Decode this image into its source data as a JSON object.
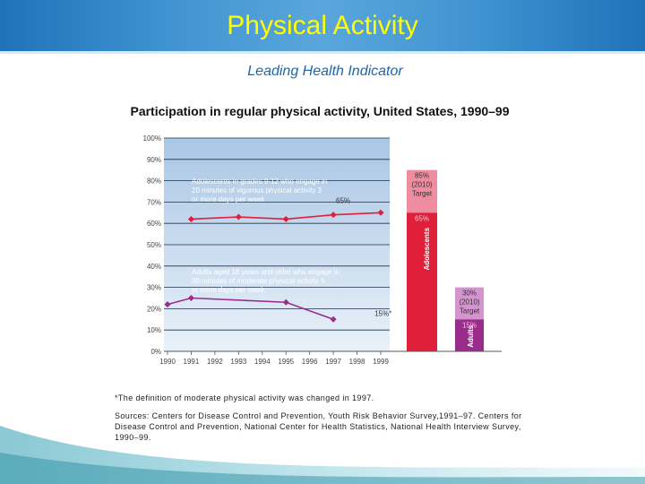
{
  "header": {
    "title": "Physical Activity",
    "subtitle": "Leading Health Indicator"
  },
  "colors": {
    "adolescents": "#e0203a",
    "adults": "#9a2d8c",
    "target_adolescents": "#ee8ca0",
    "target_adults": "#d494cd"
  },
  "chart_data": {
    "type": "line",
    "title": "Participation in regular physical activity, United States, 1990–99",
    "x": [
      1990,
      1991,
      1992,
      1993,
      1994,
      1995,
      1996,
      1997,
      1998,
      1999
    ],
    "x_tick_labels": [
      "1990",
      "1991",
      "1992",
      "1993",
      "1994",
      "1995",
      "1996",
      "1997",
      "1998",
      "1999"
    ],
    "y_tick_labels": [
      "0%",
      "10%",
      "20%",
      "30%",
      "40%",
      "50%",
      "60%",
      "70%",
      "80%",
      "90%",
      "100%"
    ],
    "ylim": [
      0,
      100
    ],
    "grid": true,
    "series": [
      {
        "key": "adolescents",
        "description": "Adolescents in grades 9-12 who engage in 20 minutes of vigorous physical activity 3 or more days per week",
        "description_lines": [
          "Adolescents in grades 9-12 who engage in",
          "20 minutes of vigorous physical activity 3",
          "or more days per week"
        ],
        "x": [
          1990,
          1991,
          1993,
          1995,
          1997,
          1999
        ],
        "y": [
          null,
          62,
          63,
          62,
          64,
          65
        ],
        "end_label": "65%",
        "color": "#e0203a"
      },
      {
        "key": "adults",
        "description": "Adults aged 18 years and older who engage in 30 minutes of moderate physical activity 5 or more days per week",
        "description_lines": [
          "Adults aged 18 years and older who engage in",
          "30 minutes of moderate physical activity 5",
          "or more days per week"
        ],
        "x": [
          1990,
          1991,
          1995,
          1997
        ],
        "y": [
          22,
          25,
          23,
          15
        ],
        "end_label": "15%*",
        "color": "#9a2d8c"
      }
    ],
    "targets": [
      {
        "group": "Adolescents",
        "value": 85,
        "current": 65,
        "label_lines": [
          "85%",
          "(2010)",
          "Target"
        ],
        "current_label": "65%"
      },
      {
        "group": "Adults",
        "value": 30,
        "current": 15,
        "label_lines": [
          "30%",
          "(2010)",
          "Target"
        ],
        "current_label": "15%"
      }
    ]
  },
  "notes": {
    "footnote": "*The definition of moderate physical activity was changed in 1997.",
    "sources": "Sources: Centers for Disease Control and Prevention, Youth Risk Behavior Survey,1991–97. Centers for Disease Control and Prevention, National Center for Health Statistics, National Health Interview Survey, 1990–99."
  }
}
